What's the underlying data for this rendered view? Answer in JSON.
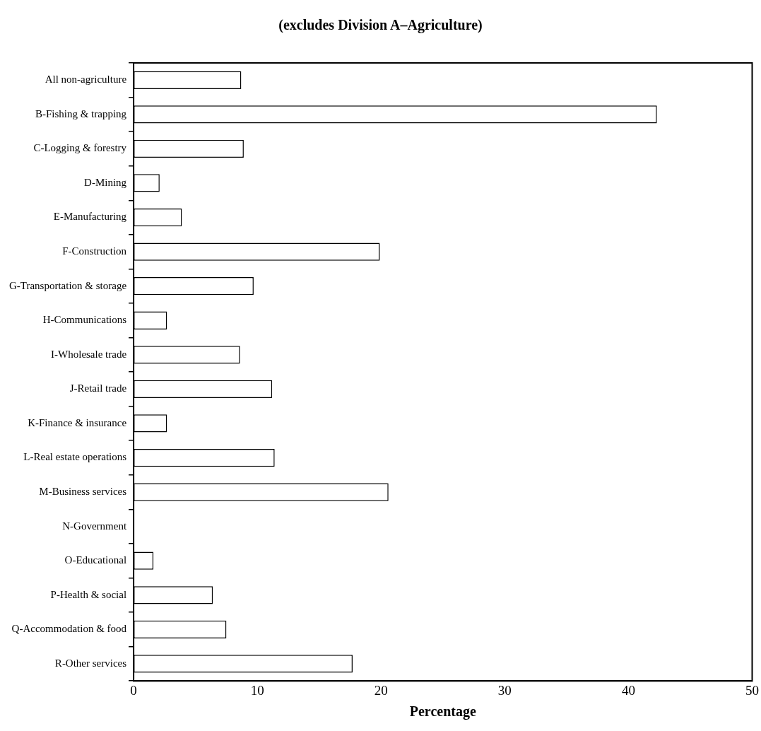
{
  "chart_data": {
    "type": "bar",
    "orientation": "horizontal",
    "title": "(excludes Division A–Agriculture)",
    "xlabel": "Percentage",
    "categories": [
      "All non-agriculture",
      "B-Fishing & trapping",
      "C-Logging & forestry",
      "D-Mining",
      "E-Manufacturing",
      "F-Construction",
      "G-Transportation & storage",
      "H-Communications",
      "I-Wholesale trade",
      "J-Retail trade",
      "K-Finance & insurance",
      "L-Real estate operations",
      "M-Business services",
      "N-Government",
      "O-Educational",
      "P-Health & social",
      "Q-Accommodation & food",
      "R-Other services"
    ],
    "values": [
      8.7,
      42.3,
      8.9,
      2.1,
      3.9,
      19.9,
      9.7,
      2.7,
      8.6,
      11.2,
      2.7,
      11.4,
      20.6,
      null,
      1.6,
      6.4,
      7.5,
      17.7
    ],
    "color": "#ffffff",
    "xlim": [
      0,
      50
    ],
    "xticks": [
      0,
      10,
      20,
      30,
      40,
      50
    ],
    "grid": false,
    "legend": false
  }
}
